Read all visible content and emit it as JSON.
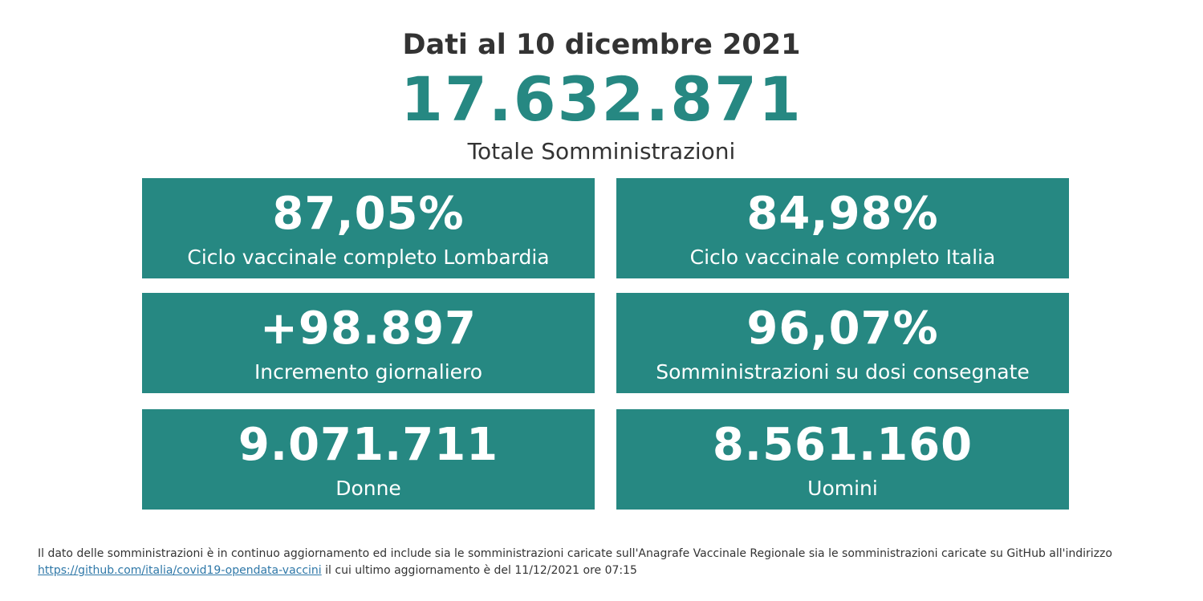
{
  "header": {
    "date_title": "Dati al 10 dicembre 2021",
    "total_value": "17.632.871",
    "total_label": "Totale Somministrazioni"
  },
  "cards": [
    {
      "value": "87,05%",
      "label": "Ciclo vaccinale completo Lombardia"
    },
    {
      "value": "84,98%",
      "label": "Ciclo vaccinale completo Italia"
    },
    {
      "value": "+98.897",
      "label": "Incremento giornaliero"
    },
    {
      "value": "96,07%",
      "label": "Somministrazioni su dosi consegnate"
    },
    {
      "value": "9.071.711",
      "label": "Donne"
    },
    {
      "value": "8.561.160",
      "label": "Uomini"
    }
  ],
  "footer": {
    "text_before": "Il dato delle somministrazioni è in continuo aggiornamento ed include sia le somministrazioni caricate sull'Anagrafe Vaccinale Regionale sia le somministrazioni caricate su GitHub all'indirizzo",
    "link_text": "https://github.com/italia/covid19-opendata-vaccini",
    "text_after": " il cui ultimo aggiornamento è del 11/12/2021 ore 07:15"
  },
  "colors": {
    "accent": "#268882",
    "text": "#333333",
    "link": "#2f78a8"
  }
}
